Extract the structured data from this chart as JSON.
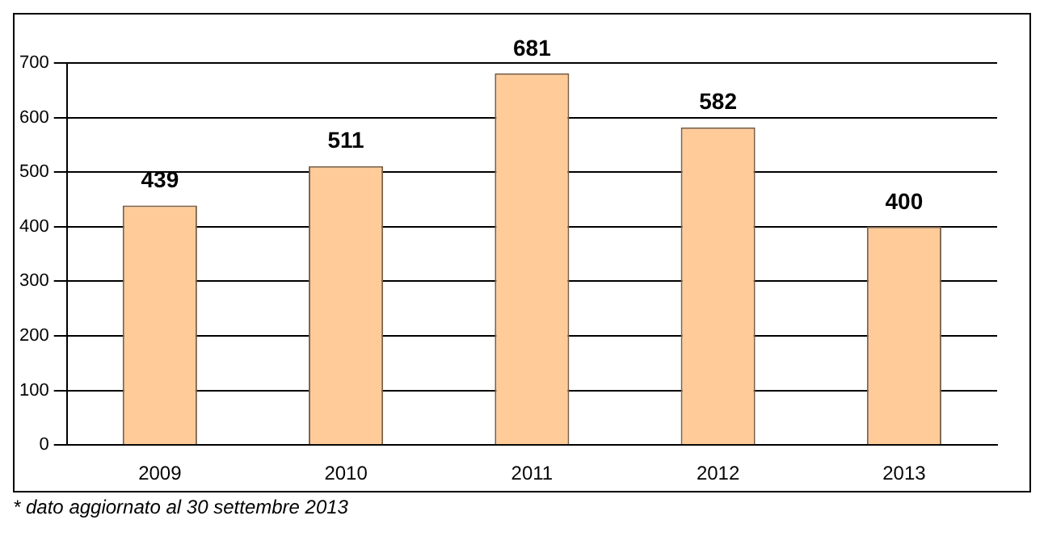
{
  "chart_data": {
    "type": "bar",
    "categories": [
      "2009",
      "2010",
      "2011",
      "2012",
      "2013"
    ],
    "values": [
      439,
      511,
      681,
      582,
      400
    ],
    "color": "#ffcc99",
    "ylim": [
      0,
      700
    ],
    "yticks": [
      0,
      100,
      200,
      300,
      400,
      500,
      600,
      700
    ],
    "grid": "y",
    "data_labels": true,
    "legend": false,
    "annotations": [
      "* dato aggiornato al 30 settembre 2013"
    ]
  }
}
